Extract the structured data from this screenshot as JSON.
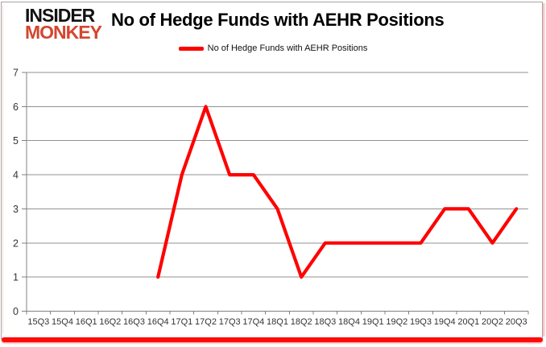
{
  "branding": {
    "logo_line1": "INSIDER",
    "logo_line2": "MONKEY",
    "logo_line2_color": "#d4462f"
  },
  "header": {
    "title": "No of Hedge Funds with AEHR Positions"
  },
  "legend": {
    "label": "No of Hedge Funds with AEHR Positions",
    "marker_color": "#ff0000"
  },
  "chart_data": {
    "type": "line",
    "title": "No of Hedge Funds with AEHR Positions",
    "categories": [
      "15Q3",
      "15Q4",
      "16Q1",
      "16Q2",
      "16Q3",
      "16Q4",
      "17Q1",
      "17Q2",
      "17Q3",
      "17Q4",
      "18Q1",
      "18Q2",
      "18Q3",
      "18Q4",
      "19Q1",
      "19Q2",
      "19Q3",
      "19Q4",
      "20Q1",
      "20Q2",
      "20Q3"
    ],
    "series": [
      {
        "name": "No of Hedge Funds with AEHR Positions",
        "color": "#ff0000",
        "values": [
          null,
          null,
          null,
          null,
          null,
          1,
          4,
          6,
          4,
          4,
          3,
          1,
          2,
          2,
          2,
          2,
          2,
          3,
          3,
          2,
          3
        ]
      }
    ],
    "xlabel": "",
    "ylabel": "",
    "ylim": [
      0,
      7
    ],
    "y_ticks": [
      0,
      1,
      2,
      3,
      4,
      5,
      6,
      7
    ],
    "grid": true,
    "legend_position": "top-center",
    "grid_color": "#919191",
    "axis_color": "#808080",
    "tick_label_color": "#333333"
  }
}
